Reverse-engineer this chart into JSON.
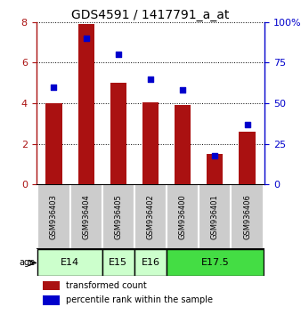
{
  "title": "GDS4591 / 1417791_a_at",
  "samples": [
    "GSM936403",
    "GSM936404",
    "GSM936405",
    "GSM936402",
    "GSM936400",
    "GSM936401",
    "GSM936406"
  ],
  "red_values": [
    4.0,
    7.9,
    5.0,
    4.05,
    3.9,
    1.5,
    2.62
  ],
  "blue_values": [
    60,
    90,
    80,
    65,
    58,
    18,
    37
  ],
  "ylim_left": [
    0,
    8
  ],
  "ylim_right": [
    0,
    100
  ],
  "yticks_left": [
    0,
    2,
    4,
    6,
    8
  ],
  "yticks_right": [
    0,
    25,
    50,
    75,
    100
  ],
  "ytick_labels_right": [
    "0",
    "25",
    "50",
    "75",
    "100%"
  ],
  "bar_color": "#aa1111",
  "dot_color": "#0000cc",
  "bar_width": 0.5,
  "age_groups": [
    {
      "label": "E14",
      "indices": [
        0,
        1
      ],
      "color": "#ccffcc"
    },
    {
      "label": "E15",
      "indices": [
        2
      ],
      "color": "#ccffcc"
    },
    {
      "label": "E16",
      "indices": [
        3
      ],
      "color": "#ccffcc"
    },
    {
      "label": "E17.5",
      "indices": [
        4,
        5,
        6
      ],
      "color": "#44dd44"
    }
  ],
  "sample_box_color": "#cccccc",
  "legend_labels": [
    "transformed count",
    "percentile rank within the sample"
  ],
  "legend_colors": [
    "#aa1111",
    "#0000cc"
  ],
  "title_fontsize": 10,
  "tick_fontsize": 8,
  "sample_fontsize": 6,
  "age_fontsize": 8
}
